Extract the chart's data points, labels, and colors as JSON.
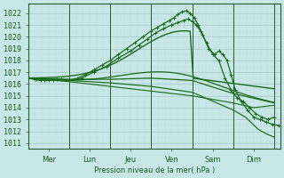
{
  "background_color": "#c8e8e8",
  "grid_color_major": "#b0d0d0",
  "grid_color_minor": "#c0dada",
  "line_color": "#1a6b1a",
  "ylabel_ticks": [
    1011,
    1012,
    1013,
    1014,
    1015,
    1016,
    1017,
    1018,
    1019,
    1020,
    1021,
    1022
  ],
  "xlabels": [
    "Mer",
    "Lun",
    "Jeu",
    "Ven",
    "Sam",
    "Dim"
  ],
  "xtick_positions": [
    0.5,
    1.5,
    2.5,
    3.5,
    4.5,
    5.5
  ],
  "xline_positions": [
    0,
    1,
    2,
    3,
    4,
    5,
    6
  ],
  "xlabel_text": "Pression niveau de la mer( hPa )",
  "ylim": [
    1010.5,
    1022.8
  ],
  "xlim": [
    0,
    6.15
  ]
}
